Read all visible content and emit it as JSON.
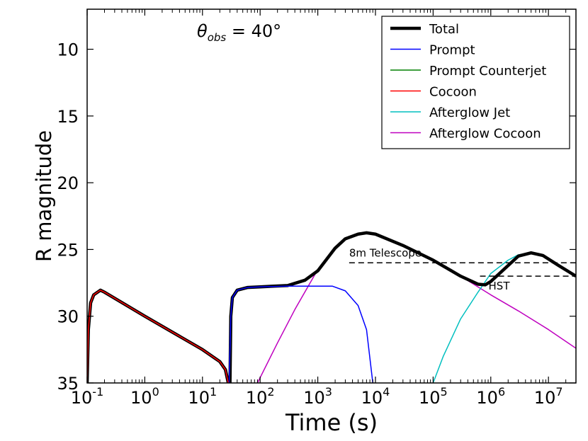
{
  "chart_data": {
    "type": "line",
    "xlabel": "Time (s)",
    "ylabel": "R magnitude",
    "xscale": "log",
    "xlim": [
      0.1,
      30000000
    ],
    "ylim": [
      35,
      7
    ],
    "y_inverted": true,
    "annotation": "θobs = 40°",
    "x_ticks": [
      {
        "value": 0.1,
        "base": "10",
        "exp": "-1"
      },
      {
        "value": 1,
        "base": "10",
        "exp": "0"
      },
      {
        "value": 10,
        "base": "10",
        "exp": "1"
      },
      {
        "value": 100,
        "base": "10",
        "exp": "2"
      },
      {
        "value": 1000,
        "base": "10",
        "exp": "3"
      },
      {
        "value": 10000,
        "base": "10",
        "exp": "4"
      },
      {
        "value": 100000,
        "base": "10",
        "exp": "5"
      },
      {
        "value": 1000000,
        "base": "10",
        "exp": "6"
      },
      {
        "value": 10000000,
        "base": "10",
        "exp": "7"
      }
    ],
    "y_ticks": [
      "10",
      "15",
      "20",
      "25",
      "30",
      "35"
    ],
    "legend_position": "top-right",
    "series": [
      {
        "name": "Total",
        "color": "#000000",
        "width": 4.5,
        "points": [
          [
            0.1,
            35
          ],
          [
            0.105,
            31
          ],
          [
            0.115,
            29
          ],
          [
            0.13,
            28.4
          ],
          [
            0.17,
            28.05
          ],
          [
            0.2,
            28.2
          ],
          [
            1,
            30
          ],
          [
            10,
            32.5
          ],
          [
            20,
            33.4
          ],
          [
            25,
            34
          ],
          [
            28,
            35
          ],
          [
            30,
            35
          ],
          [
            31,
            30
          ],
          [
            33,
            28.6
          ],
          [
            40,
            28.05
          ],
          [
            60,
            27.85
          ],
          [
            100,
            27.8
          ],
          [
            300,
            27.7
          ],
          [
            600,
            27.3
          ],
          [
            1000,
            26.6
          ],
          [
            2000,
            24.9
          ],
          [
            3000,
            24.2
          ],
          [
            5000,
            23.85
          ],
          [
            7000,
            23.75
          ],
          [
            10000,
            23.85
          ],
          [
            30000,
            24.7
          ],
          [
            100000,
            25.8
          ],
          [
            300000,
            27.0
          ],
          [
            600000,
            27.6
          ],
          [
            800000,
            27.65
          ],
          [
            1000000,
            27.4
          ],
          [
            2000000,
            26.2
          ],
          [
            3000000,
            25.5
          ],
          [
            5000000,
            25.25
          ],
          [
            8000000,
            25.45
          ],
          [
            15000000,
            26.2
          ],
          [
            30000000,
            27.0
          ]
        ]
      },
      {
        "name": "Prompt",
        "color": "#0000ff",
        "width": 1.5,
        "points": [
          [
            29,
            35
          ],
          [
            31,
            30
          ],
          [
            33,
            28.6
          ],
          [
            40,
            28.05
          ],
          [
            60,
            27.85
          ],
          [
            100,
            27.8
          ],
          [
            300,
            27.75
          ],
          [
            1000,
            27.75
          ],
          [
            1800,
            27.75
          ],
          [
            3000,
            28.1
          ],
          [
            5000,
            29.2
          ],
          [
            7000,
            31
          ],
          [
            9000,
            35
          ]
        ]
      },
      {
        "name": "Prompt Counterjet",
        "color": "#008000",
        "width": 1.5,
        "points": []
      },
      {
        "name": "Cocoon",
        "color": "#ff0000",
        "width": 1.5,
        "points": [
          [
            0.1,
            35
          ],
          [
            0.105,
            31
          ],
          [
            0.115,
            29
          ],
          [
            0.13,
            28.4
          ],
          [
            0.17,
            28.05
          ],
          [
            0.2,
            28.2
          ],
          [
            1,
            30
          ],
          [
            10,
            32.5
          ],
          [
            20,
            33.4
          ],
          [
            25,
            34
          ],
          [
            28,
            35
          ]
        ]
      },
      {
        "name": "Afterglow Jet",
        "color": "#00bfbf",
        "width": 1.5,
        "points": [
          [
            100000,
            35
          ],
          [
            150000,
            33
          ],
          [
            300000,
            30.2
          ],
          [
            600000,
            28.2
          ],
          [
            1000000,
            26.8
          ],
          [
            2000000,
            25.8
          ],
          [
            3000000,
            25.4
          ],
          [
            5000000,
            25.25
          ],
          [
            8000000,
            25.45
          ],
          [
            15000000,
            26.2
          ],
          [
            30000000,
            27.0
          ]
        ]
      },
      {
        "name": "Afterglow Cocoon",
        "color": "#bf00bf",
        "width": 1.5,
        "points": [
          [
            90,
            35
          ],
          [
            200,
            32
          ],
          [
            400,
            29.5
          ],
          [
            1000,
            26.5
          ],
          [
            2000,
            24.8
          ],
          [
            3000,
            24.2
          ],
          [
            5000,
            23.85
          ],
          [
            7000,
            23.75
          ],
          [
            10000,
            23.85
          ],
          [
            30000,
            24.7
          ],
          [
            100000,
            25.8
          ],
          [
            300000,
            27.0
          ],
          [
            1000000,
            28.4
          ],
          [
            3000000,
            29.6
          ],
          [
            10000000,
            31
          ],
          [
            30000000,
            32.4
          ]
        ]
      }
    ],
    "thresholds": [
      {
        "label": "8m Telescope",
        "y": 26,
        "x_start": 3500
      },
      {
        "label": "HST",
        "y": 27,
        "x_start": 650000
      }
    ]
  }
}
